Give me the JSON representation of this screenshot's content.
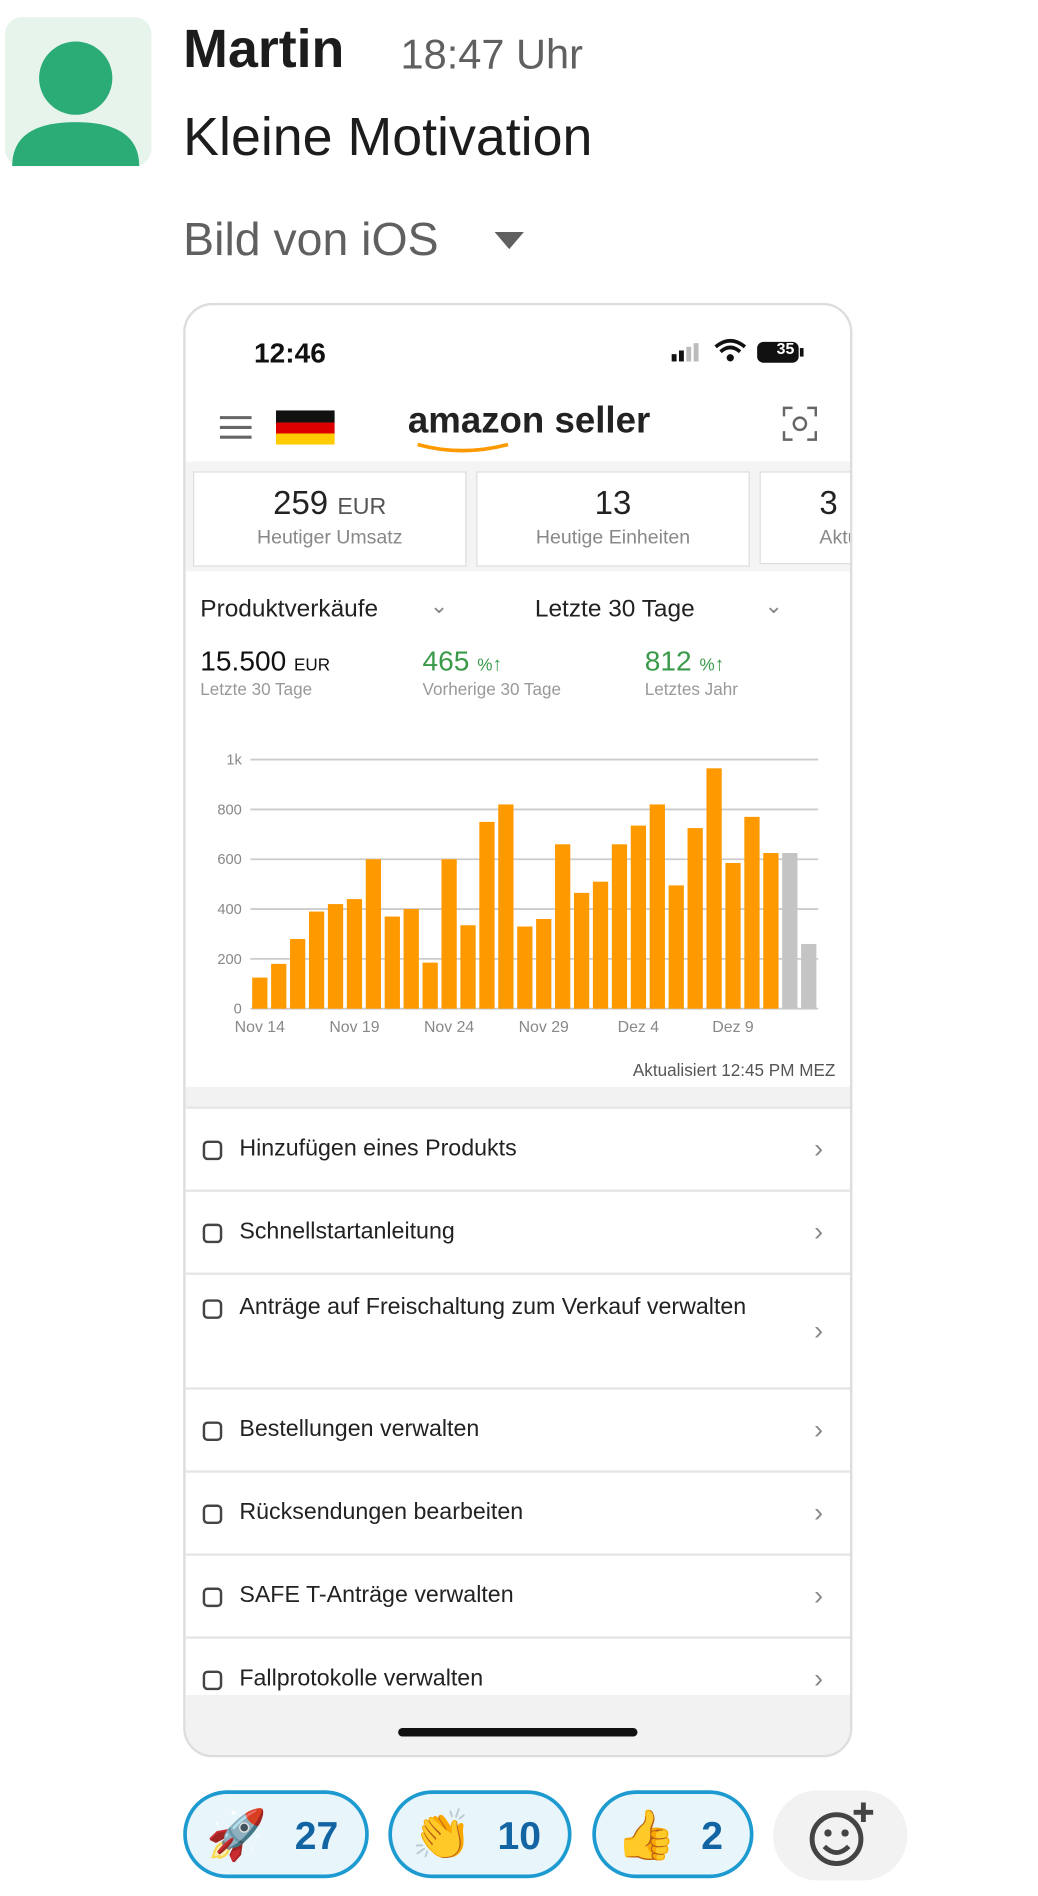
{
  "message": {
    "author": "Martin",
    "time": "18:47 Uhr",
    "text": "Kleine Motivation",
    "attachment_label": "Bild von iOS"
  },
  "phone": {
    "status_time": "12:46",
    "battery": "35",
    "app_title": "amazon seller",
    "kpis": [
      {
        "value": "259",
        "unit": "EUR",
        "label": "Heutiger Umsatz"
      },
      {
        "value": "13",
        "label": "Heutige Einheiten"
      },
      {
        "value": "3",
        "label": "Aktue"
      }
    ],
    "filters": [
      "Produktverkäufe",
      "Letzte 30 Tage"
    ],
    "stats": [
      {
        "value": "15.500",
        "unit": "EUR",
        "label": "Letzte 30 Tage"
      },
      {
        "value": "465",
        "unit": "%",
        "label": "Vorherige 30 Tage"
      },
      {
        "value": "812",
        "unit": "%",
        "label": "Letztes Jahr"
      }
    ],
    "chart_data": {
      "type": "bar",
      "categories": [
        "Nov 14",
        null,
        null,
        null,
        null,
        "Nov 19",
        null,
        null,
        null,
        null,
        "Nov 24",
        null,
        null,
        null,
        null,
        "Nov 29",
        null,
        null,
        null,
        null,
        "Dez 4",
        null,
        null,
        null,
        null,
        "Dez 9",
        null,
        null,
        null,
        null
      ],
      "values": [
        125,
        180,
        280,
        390,
        420,
        440,
        600,
        370,
        400,
        185,
        600,
        335,
        750,
        820,
        330,
        360,
        660,
        465,
        510,
        660,
        735,
        820,
        495,
        725,
        965,
        585,
        770,
        625,
        625,
        260
      ],
      "colors": [
        "#f90",
        "#f90",
        "#f90",
        "#f90",
        "#f90",
        "#f90",
        "#f90",
        "#f90",
        "#f90",
        "#f90",
        "#f90",
        "#f90",
        "#f90",
        "#f90",
        "#f90",
        "#f90",
        "#f90",
        "#f90",
        "#f90",
        "#f90",
        "#f90",
        "#f90",
        "#f90",
        "#f90",
        "#f90",
        "#f90",
        "#f90",
        "#f90",
        "#c4c4c4",
        "#c4c4c4"
      ],
      "ylim": [
        0,
        1000
      ],
      "yticks": [
        0,
        200,
        400,
        600,
        800,
        {
          "value": 1000,
          "label": "1k"
        }
      ],
      "grid": true
    },
    "updated": "Aktualisiert 12:45 PM MEZ",
    "menu": [
      "Hinzufügen eines Produkts",
      "Schnellstartanleitung",
      "Anträge auf Freischaltung zum Verkauf verwalten",
      "Bestellungen verwalten",
      "Rücksendungen bearbeiten",
      "SAFE T-Anträge verwalten",
      "Fallprotokolle verwalten"
    ]
  },
  "reactions": [
    {
      "emoji": "🚀",
      "count": "27"
    },
    {
      "emoji": "👏",
      "count": "10"
    },
    {
      "emoji": "👍",
      "count": "2"
    }
  ]
}
